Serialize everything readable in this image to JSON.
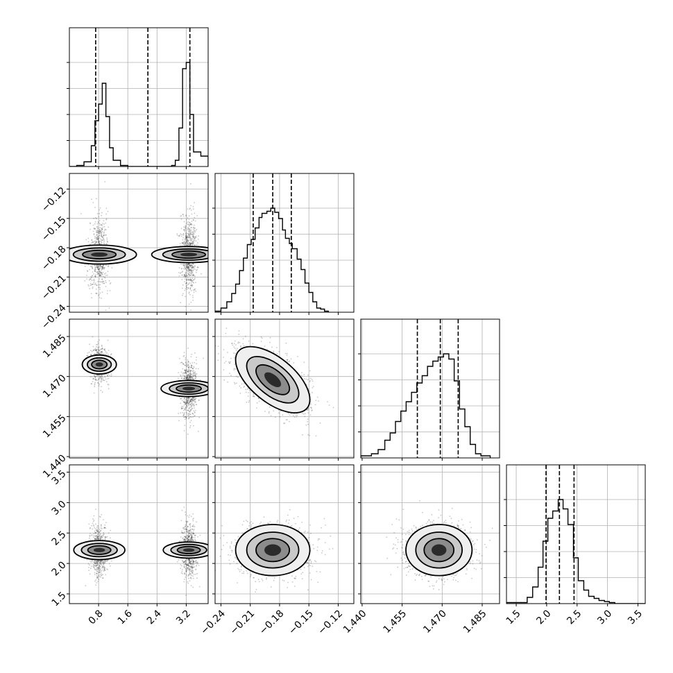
{
  "chart_data": {
    "type": "corner",
    "parameters": [
      {
        "range": [
          0.0,
          3.8
        ],
        "ticks": [
          0.8,
          1.6,
          2.4,
          3.2
        ],
        "tick_labels": [
          "0.8",
          "1.6",
          "2.4",
          "3.2"
        ],
        "quantiles": [
          0.72,
          2.15,
          3.3
        ],
        "hist": {
          "edges": [
            0.0,
            0.2,
            0.4,
            0.6,
            0.7,
            0.8,
            0.9,
            1.0,
            1.1,
            1.2,
            1.4,
            1.6,
            1.8,
            2.0,
            2.2,
            2.4,
            2.6,
            2.8,
            2.9,
            3.0,
            3.1,
            3.2,
            3.3,
            3.4,
            3.6,
            3.8
          ],
          "values": [
            0,
            0.01,
            0.045,
            0.2,
            0.44,
            0.6,
            0.8,
            0.48,
            0.18,
            0.06,
            0.01,
            0,
            0,
            0,
            0,
            0,
            0,
            0.01,
            0.06,
            0.37,
            0.94,
            1.0,
            0.5,
            0.14,
            0.1
          ]
        },
        "clusters": [
          {
            "mean": 0.82,
            "sd": 0.13,
            "weight": 0.46
          },
          {
            "mean": 3.27,
            "sd": 0.11,
            "weight": 0.54
          }
        ]
      },
      {
        "range": [
          -0.246,
          -0.104
        ],
        "ticks": [
          -0.24,
          -0.21,
          -0.18,
          -0.15,
          -0.12
        ],
        "tick_labels": [
          "−0.24",
          "−0.21",
          "−0.18",
          "−0.15",
          "−0.12"
        ],
        "quantiles": [
          -0.207,
          -0.187,
          -0.168
        ],
        "mean": -0.187,
        "sd": 0.019,
        "hist": {
          "edges": [
            -0.246,
            -0.24,
            -0.234,
            -0.229,
            -0.225,
            -0.221,
            -0.217,
            -0.213,
            -0.209,
            -0.205,
            -0.201,
            -0.198,
            -0.193,
            -0.189,
            -0.185,
            -0.181,
            -0.177,
            -0.174,
            -0.17,
            -0.167,
            -0.162,
            -0.158,
            -0.154,
            -0.15,
            -0.146,
            -0.142,
            -0.138,
            -0.134,
            -0.13
          ],
          "values": [
            0.01,
            0.04,
            0.1,
            0.18,
            0.27,
            0.4,
            0.52,
            0.65,
            0.7,
            0.81,
            0.91,
            0.95,
            0.97,
            1.0,
            0.96,
            0.9,
            0.79,
            0.71,
            0.66,
            0.61,
            0.51,
            0.41,
            0.28,
            0.19,
            0.1,
            0.04,
            0.03,
            0.01
          ]
        }
      },
      {
        "range": [
          1.4395,
          1.4915
        ],
        "ticks": [
          1.44,
          1.455,
          1.47,
          1.485
        ],
        "tick_labels": [
          "1.440",
          "1.455",
          "1.470",
          "1.485"
        ],
        "quantiles": [
          1.4607,
          1.4693,
          1.476
        ],
        "mean": 1.4688,
        "sd": 0.0062,
        "hist": {
          "edges": [
            1.4395,
            1.4435,
            1.446,
            1.4485,
            1.4505,
            1.4525,
            1.4545,
            1.4565,
            1.4585,
            1.4605,
            1.4625,
            1.4645,
            1.4665,
            1.4685,
            1.4705,
            1.4725,
            1.4745,
            1.4765,
            1.4785,
            1.4805,
            1.4825,
            1.4845,
            1.488
          ],
          "values": [
            0.02,
            0.04,
            0.08,
            0.17,
            0.24,
            0.35,
            0.45,
            0.54,
            0.63,
            0.72,
            0.79,
            0.88,
            0.93,
            0.97,
            1.0,
            0.95,
            0.74,
            0.47,
            0.3,
            0.13,
            0.04,
            0.02
          ]
        }
      },
      {
        "range": [
          1.34,
          3.62
        ],
        "ticks": [
          1.5,
          2.0,
          2.5,
          3.0,
          3.5
        ],
        "tick_labels": [
          "1.5",
          "2.0",
          "2.5",
          "3.0",
          "3.5"
        ],
        "quantiles": [
          1.99,
          2.21,
          2.45
        ],
        "mean": 2.22,
        "sd": 0.21,
        "hist": {
          "edges": [
            1.34,
            1.68,
            1.77,
            1.86,
            1.94,
            2.02,
            2.1,
            2.19,
            2.27,
            2.35,
            2.44,
            2.52,
            2.61,
            2.69,
            2.78,
            2.86,
            2.95,
            3.03,
            3.12,
            3.62
          ],
          "values": [
            0.01,
            0.06,
            0.16,
            0.35,
            0.6,
            0.82,
            0.89,
            1.0,
            0.91,
            0.76,
            0.44,
            0.22,
            0.13,
            0.07,
            0.05,
            0.03,
            0.02,
            0.01,
            0
          ]
        }
      }
    ]
  }
}
